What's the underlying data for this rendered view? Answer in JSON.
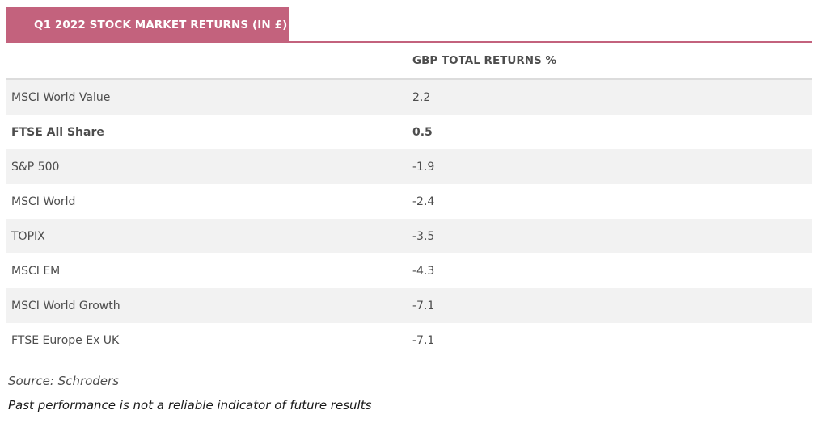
{
  "table": {
    "title": "Q1 2022 STOCK MARKET RETURNS (IN £)",
    "column_headers": [
      "",
      "GBP TOTAL RETURNS %"
    ],
    "rows": [
      {
        "name": "MSCI World Value",
        "value": "2.2"
      },
      {
        "name": "FTSE All Share",
        "value": "0.5",
        "bold": true
      },
      {
        "name": "S&P 500",
        "value": "-1.9"
      },
      {
        "name": "MSCI World",
        "value": "-2.4"
      },
      {
        "name": "TOPIX",
        "value": "-3.5"
      },
      {
        "name": "MSCI EM",
        "value": "-4.3"
      },
      {
        "name": "MSCI World Growth",
        "value": "-7.1"
      },
      {
        "name": "FTSE Europe Ex UK",
        "value": "-7.1"
      }
    ]
  },
  "chart_data": {
    "type": "table",
    "title": "Q1 2022 STOCK MARKET RETURNS (IN £)",
    "columns": [
      "",
      "GBP TOTAL RETURNS %"
    ],
    "categories": [
      "MSCI World Value",
      "FTSE All Share",
      "S&P 500",
      "MSCI World",
      "TOPIX",
      "MSCI EM",
      "MSCI World Growth",
      "FTSE Europe Ex UK"
    ],
    "values": [
      2.2,
      0.5,
      -1.9,
      -2.4,
      -3.5,
      -4.3,
      -7.1,
      -7.1
    ]
  },
  "notes": {
    "source": "Source: Schroders",
    "disclaimer": "Past performance is not a reliable indicator of future results"
  },
  "colors": {
    "accent": "#c3627d",
    "row_shade": "#f2f2f2",
    "header_rule": "#dcdcdc",
    "text": "#4d4d4d"
  }
}
